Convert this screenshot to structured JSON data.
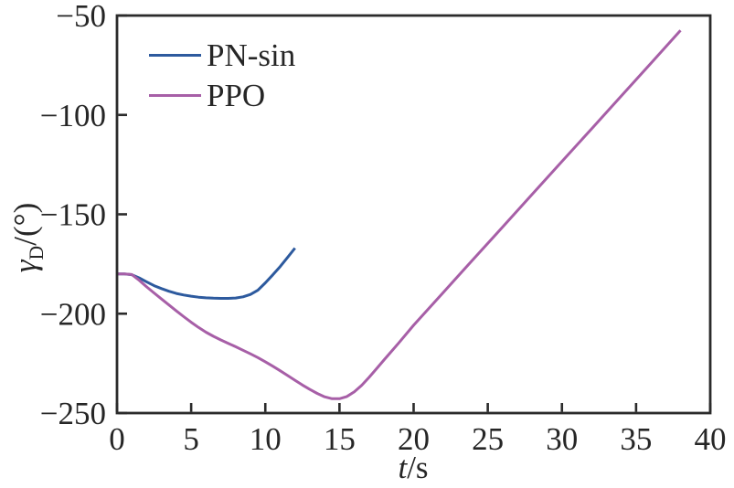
{
  "figure": {
    "background": "#ffffff",
    "axis_color": "#2b2b2b",
    "text_color": "#262626"
  },
  "labels": {
    "xlabel_italic": "t",
    "xlabel_rest": "/s",
    "ylabel_gamma": "γ",
    "ylabel_sub": "D",
    "ylabel_rest": "/(°)"
  },
  "chart_data": {
    "type": "line",
    "title": "",
    "xlabel": "t/s",
    "ylabel": "γ_D/(°)",
    "xlim": [
      0,
      40
    ],
    "ylim": [
      -250,
      -50
    ],
    "xticks": [
      0,
      5,
      10,
      15,
      20,
      25,
      30,
      35,
      40
    ],
    "xtick_labels": [
      "0",
      "5",
      "10",
      "15",
      "20",
      "25",
      "30",
      "35",
      "40"
    ],
    "yticks": [
      -250,
      -200,
      -150,
      -100,
      -50
    ],
    "ytick_labels": [
      "−250",
      "−200",
      "−150",
      "−100",
      "−50"
    ],
    "grid": false,
    "legend_position": "upper-left",
    "series": [
      {
        "name": "PN-sin",
        "color": "#2d5a9e",
        "points": [
          [
            0,
            -180
          ],
          [
            0.5,
            -180
          ],
          [
            1,
            -180.4
          ],
          [
            1.5,
            -182
          ],
          [
            2,
            -184
          ],
          [
            2.5,
            -185.9
          ],
          [
            3,
            -187.4
          ],
          [
            3.5,
            -188.7
          ],
          [
            4,
            -189.8
          ],
          [
            4.5,
            -190.6
          ],
          [
            5,
            -191.2
          ],
          [
            5.5,
            -191.7
          ],
          [
            6,
            -192
          ],
          [
            6.5,
            -192.2
          ],
          [
            7,
            -192.3
          ],
          [
            7.5,
            -192.3
          ],
          [
            8,
            -192.1
          ],
          [
            8.5,
            -191.5
          ],
          [
            9,
            -190.3
          ],
          [
            9.5,
            -188.2
          ],
          [
            10,
            -184.5
          ],
          [
            10.5,
            -180.5
          ],
          [
            11,
            -176.3
          ],
          [
            11.5,
            -171.7
          ],
          [
            12,
            -167
          ]
        ]
      },
      {
        "name": "PPO",
        "color": "#a75fa7",
        "points": [
          [
            0,
            -180
          ],
          [
            0.5,
            -180
          ],
          [
            1,
            -180.3
          ],
          [
            1.5,
            -183.2
          ],
          [
            2,
            -186.5
          ],
          [
            2.5,
            -189.6
          ],
          [
            3,
            -192.6
          ],
          [
            3.5,
            -195.6
          ],
          [
            4,
            -198.6
          ],
          [
            4.5,
            -201.5
          ],
          [
            5,
            -204.3
          ],
          [
            5.5,
            -206.9
          ],
          [
            6,
            -209.3
          ],
          [
            6.5,
            -211.4
          ],
          [
            7,
            -213.2
          ],
          [
            7.5,
            -214.9
          ],
          [
            8,
            -216.6
          ],
          [
            8.5,
            -218.4
          ],
          [
            9,
            -220.2
          ],
          [
            9.5,
            -222.1
          ],
          [
            10,
            -224.2
          ],
          [
            10.5,
            -226.4
          ],
          [
            11,
            -228.7
          ],
          [
            11.5,
            -231.1
          ],
          [
            12,
            -233.5
          ],
          [
            12.5,
            -235.9
          ],
          [
            13,
            -238.1
          ],
          [
            13.5,
            -240.1
          ],
          [
            14,
            -241.8
          ],
          [
            14.5,
            -242.8
          ],
          [
            15,
            -242.8
          ],
          [
            15.5,
            -241.7
          ],
          [
            16,
            -239.3
          ],
          [
            16.5,
            -236
          ],
          [
            17,
            -232
          ],
          [
            17.5,
            -227.7
          ],
          [
            18,
            -223.3
          ],
          [
            19,
            -214.7
          ],
          [
            20,
            -205.8
          ],
          [
            22,
            -189.3
          ],
          [
            24,
            -172.8
          ],
          [
            26,
            -156.4
          ],
          [
            28,
            -139.9
          ],
          [
            30,
            -123.4
          ],
          [
            32,
            -107
          ],
          [
            34,
            -90.5
          ],
          [
            36,
            -74
          ],
          [
            38,
            -57.5
          ]
        ]
      }
    ]
  }
}
